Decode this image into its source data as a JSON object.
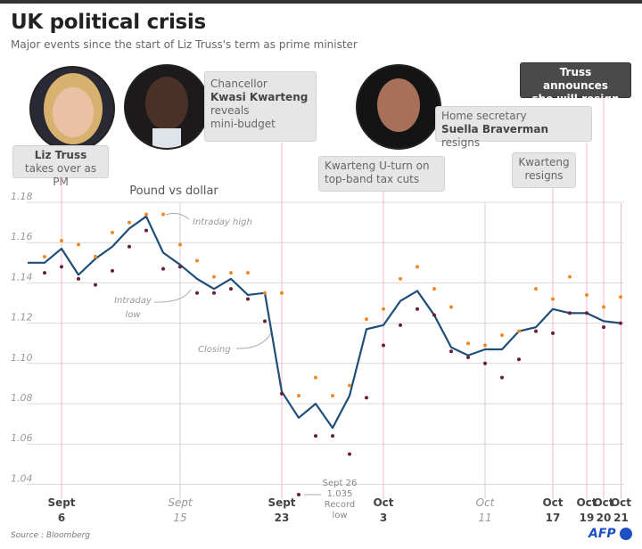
{
  "header": {
    "title": "UK political crisis",
    "subtitle": "Major events since the start of Liz Truss's term as prime minister"
  },
  "events": [
    {
      "id": "truss-pm",
      "text_bold": "Liz Truss",
      "text": " takes over as PM"
    },
    {
      "id": "mini-budget",
      "line1": "Chancellor",
      "bold": "Kwasi Kwarteng",
      "line3": "reveals",
      "line4": "mini-budget"
    },
    {
      "id": "u-turn",
      "line1": "Kwarteng U-turn on",
      "line2": "top-band tax cuts"
    },
    {
      "id": "kwarteng-resigns",
      "line1": "Kwarteng",
      "line2": "resigns"
    },
    {
      "id": "braverman",
      "line1": "Home secretary",
      "bold": "Suella Braverman",
      "rest": " resigns"
    },
    {
      "id": "truss-resign",
      "line1": "Truss announces",
      "line2": "she will resign"
    }
  ],
  "photos": [
    {
      "name": "Liz Truss"
    },
    {
      "name": "Kwasi Kwarteng"
    },
    {
      "name": "Suella Braverman"
    }
  ],
  "colors": {
    "closing": "#1f4e79",
    "high": "#f08a24",
    "low": "#6b1d3c",
    "event_line": "#f2b8c6",
    "grid": "#d9d9d9"
  },
  "chart_data": {
    "type": "line",
    "title": "Pound vs dollar",
    "ylim": [
      1.035,
      1.18
    ],
    "yticks": [
      "1.18",
      "1.16",
      "1.14",
      "1.12",
      "1.10",
      "1.08",
      "1.06",
      "1.04"
    ],
    "ytick_values": [
      1.18,
      1.16,
      1.14,
      1.12,
      1.1,
      1.08,
      1.06,
      1.04
    ],
    "grid": true,
    "xticks": [
      {
        "index": 2,
        "line1": "Sept",
        "line2": "6",
        "event": true
      },
      {
        "index": 9,
        "line1": "Sept",
        "line2": "15",
        "event": false
      },
      {
        "index": 15,
        "line1": "Sept",
        "line2": "23",
        "event": true
      },
      {
        "index": 21,
        "line1": "Oct",
        "line2": "3",
        "event": true
      },
      {
        "index": 27,
        "line1": "Oct",
        "line2": "11",
        "event": false
      },
      {
        "index": 31,
        "line1": "Oct",
        "line2": "17",
        "event": true
      },
      {
        "index": 33,
        "line1": "Oct",
        "line2": "19",
        "event": true
      },
      {
        "index": 34,
        "line1": "Oct",
        "line2": "20",
        "event": true
      },
      {
        "index": 35,
        "line1": "Oct",
        "line2": "21",
        "event": true
      }
    ],
    "series": [
      {
        "name": "Closing",
        "values": [
          1.15,
          1.15,
          1.157,
          1.144,
          1.152,
          1.158,
          1.167,
          1.173,
          1.155,
          1.149,
          1.142,
          1.137,
          1.142,
          1.134,
          1.135,
          1.086,
          1.073,
          1.08,
          1.068,
          1.084,
          1.117,
          1.119,
          1.131,
          1.136,
          1.124,
          1.108,
          1.104,
          1.107,
          1.107,
          1.116,
          1.118,
          1.127,
          1.125,
          1.125,
          1.121,
          1.12
        ]
      },
      {
        "name": "Intraday high",
        "values": [
          null,
          1.153,
          1.161,
          1.159,
          1.153,
          1.165,
          1.17,
          1.174,
          1.174,
          1.159,
          1.151,
          1.143,
          1.145,
          1.145,
          1.135,
          1.135,
          1.084,
          1.093,
          1.084,
          1.089,
          1.122,
          1.127,
          1.142,
          1.148,
          1.137,
          1.128,
          1.11,
          1.109,
          1.114,
          1.116,
          1.137,
          1.132,
          1.143,
          1.134,
          1.128,
          1.133
        ]
      },
      {
        "name": "Intraday low",
        "values": [
          null,
          1.145,
          1.148,
          1.142,
          1.139,
          1.146,
          1.158,
          1.166,
          1.147,
          1.148,
          1.135,
          1.135,
          1.137,
          1.132,
          1.121,
          1.085,
          1.035,
          1.064,
          1.064,
          1.055,
          1.083,
          1.109,
          1.119,
          1.127,
          1.124,
          1.106,
          1.103,
          1.1,
          1.093,
          1.102,
          1.116,
          1.115,
          1.125,
          1.125,
          1.118,
          1.12
        ]
      }
    ],
    "annotations": {
      "high": "Intraday high",
      "low_line1": "Intraday",
      "low_line2": "low",
      "closing": "Closing",
      "record_line1": "Sept 26",
      "record_line2": "1.035",
      "record_line3": "Record",
      "record_line4": "low"
    }
  },
  "footer": {
    "source": "Source : Bloomberg",
    "logo": "AFP"
  }
}
